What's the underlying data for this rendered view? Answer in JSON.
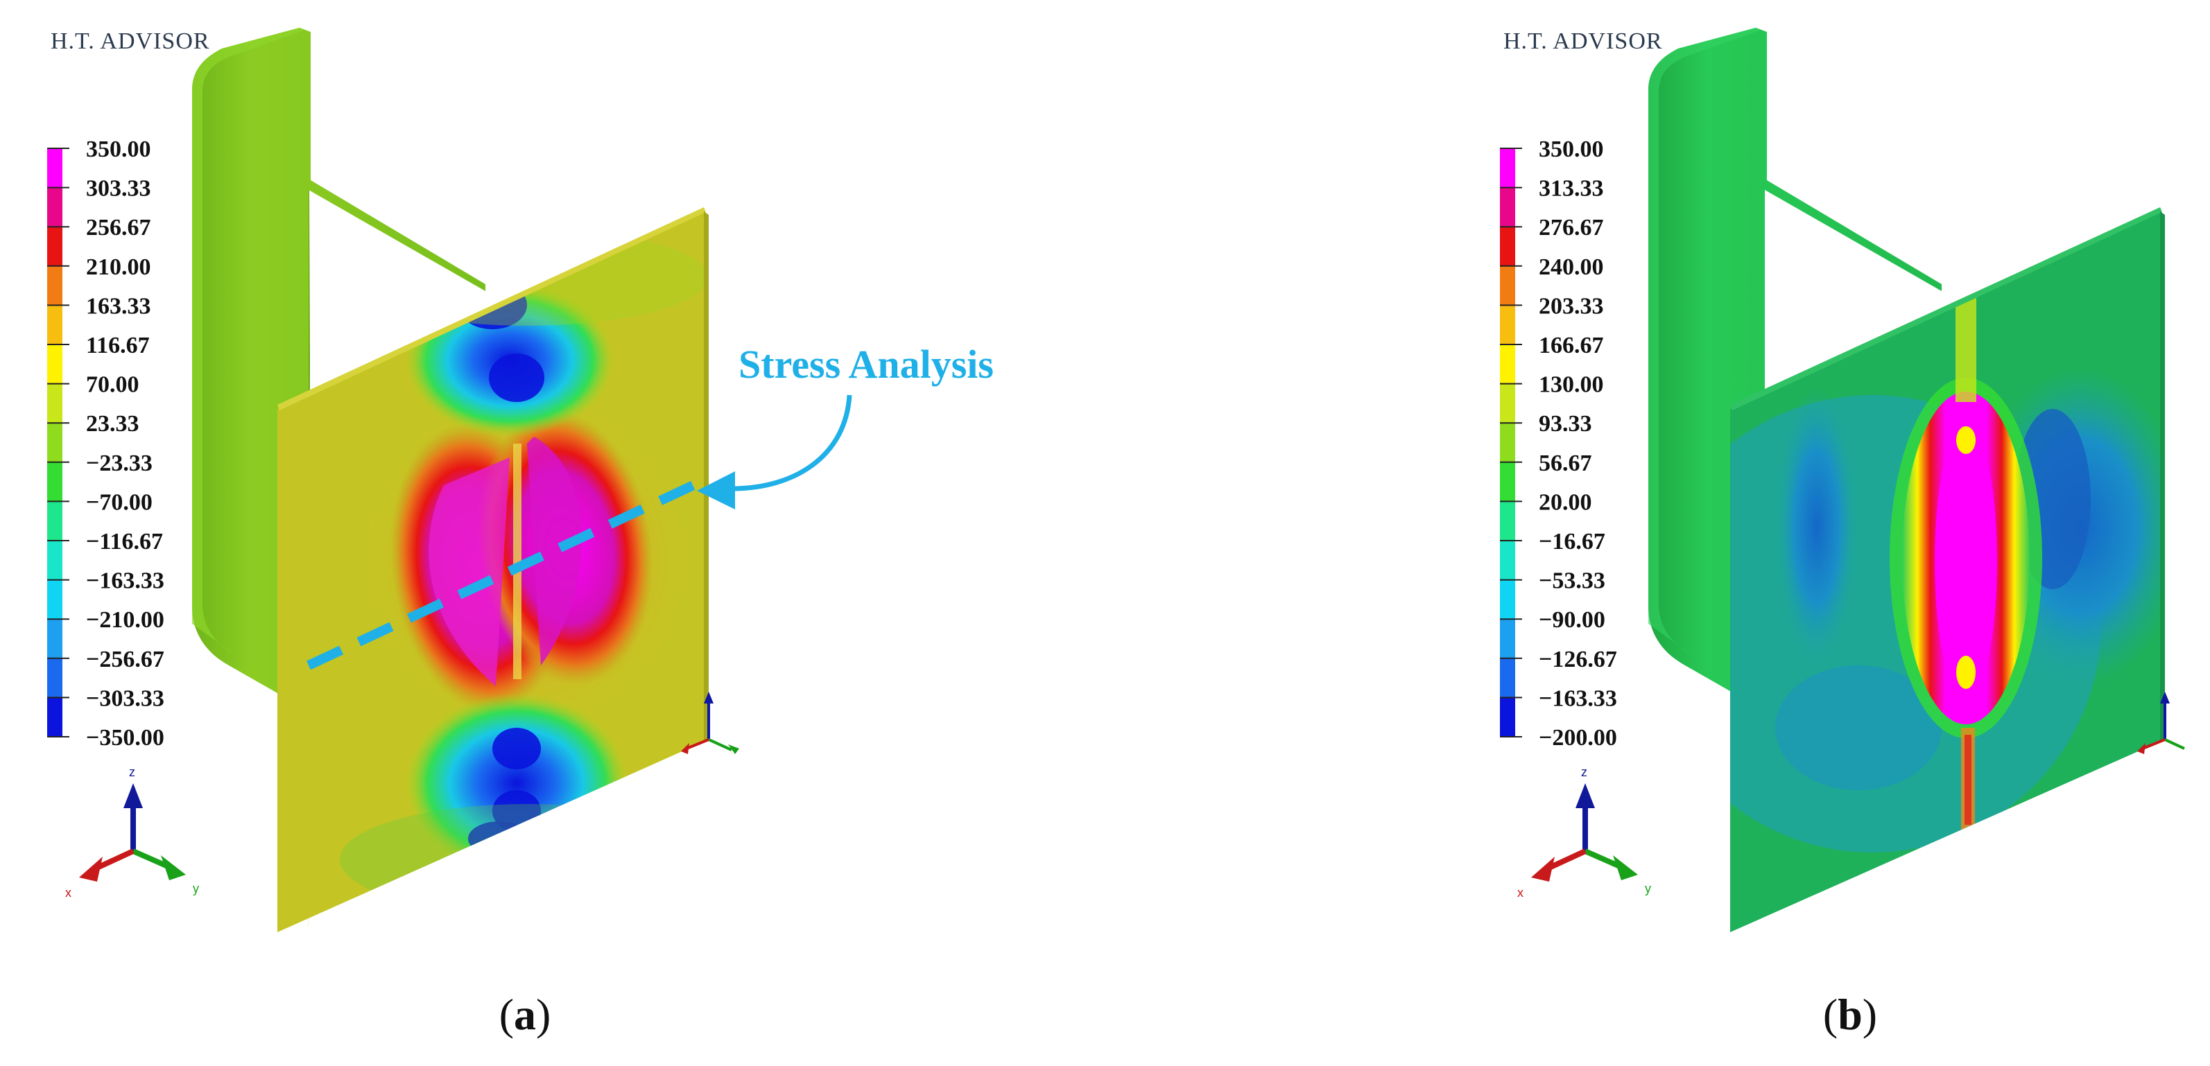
{
  "panels": [
    {
      "id": "a",
      "brand": "H.T. ADVISOR",
      "legend": {
        "labels": [
          "350.00",
          "303.33",
          "256.67",
          "210.00",
          "163.33",
          "116.67",
          "70.00",
          "23.33",
          "−23.33",
          "−70.00",
          "−116.67",
          "−163.33",
          "−210.00",
          "−256.67",
          "−303.33",
          "−350.00"
        ],
        "colors": [
          "#ff00ff",
          "#e8078a",
          "#e81414",
          "#f27c14",
          "#f7bd0f",
          "#fff200",
          "#c8e619",
          "#8fdc1e",
          "#33dd33",
          "#1ee68c",
          "#19e6c8",
          "#10d4f4",
          "#1ea0f0",
          "#1a6af0",
          "#0a14dc"
        ]
      },
      "axes": {
        "x": "x",
        "y": "y",
        "z": "z"
      },
      "callout": "Stress Analysis",
      "caption_open": "(",
      "caption_letter": "a",
      "caption_close": ")"
    },
    {
      "id": "b",
      "brand": "H.T. ADVISOR",
      "legend": {
        "labels": [
          "350.00",
          "313.33",
          "276.67",
          "240.00",
          "203.33",
          "166.67",
          "130.00",
          "93.33",
          "56.67",
          "20.00",
          "−16.67",
          "−53.33",
          "−90.00",
          "−126.67",
          "−163.33",
          "−200.00"
        ],
        "colors": [
          "#ff00ff",
          "#e8078a",
          "#e81414",
          "#f27c14",
          "#f7bd0f",
          "#fff200",
          "#c8e619",
          "#8fdc1e",
          "#33dd33",
          "#1ee68c",
          "#19e6c8",
          "#10d4f4",
          "#1ea0f0",
          "#1a6af0",
          "#0a14dc"
        ]
      },
      "axes": {
        "x": "x",
        "y": "y",
        "z": "z"
      },
      "caption_open": "(",
      "caption_letter": "b",
      "caption_close": ")"
    }
  ],
  "colors": {
    "panel_a_flange": "#7cc51a",
    "panel_a_plate": "#c1c722",
    "panel_b_flange": "#22c14c",
    "panel_b_plate": "#1fb05a",
    "callout_blue": "#1fb0e8"
  }
}
